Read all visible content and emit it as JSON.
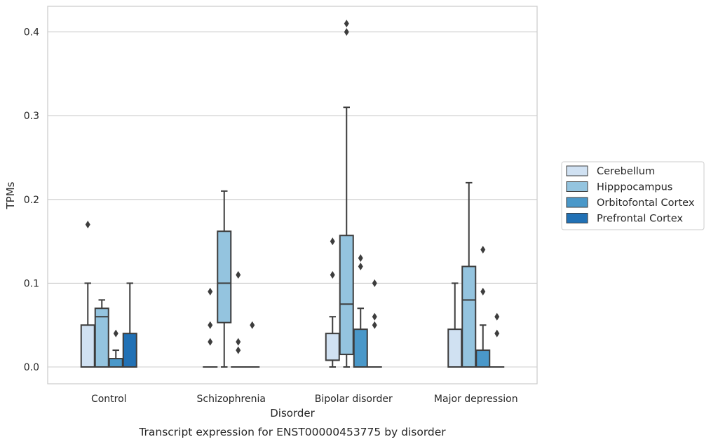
{
  "chart_data": {
    "type": "box",
    "caption": "Transcript expression for ENST00000453775 by disorder",
    "xlabel": "Disorder",
    "ylabel": "TPMs",
    "ylim": [
      -0.02,
      0.43
    ],
    "yticks": [
      0.0,
      0.1,
      0.2,
      0.3,
      0.4
    ],
    "ytick_labels": [
      "0.0",
      "0.1",
      "0.2",
      "0.3",
      "0.4"
    ],
    "grid": "horizontal",
    "legend_position": "right",
    "categories": [
      "Control",
      "Schizophrenia",
      "Bipolar disorder",
      "Major depression"
    ],
    "series": [
      {
        "name": "Cerebellum",
        "color": "#d0e1f2",
        "boxes": [
          {
            "q1": 0.0,
            "median": 0.0,
            "q3": 0.05,
            "whisker_low": 0.0,
            "whisker_high": 0.1,
            "outliers": [
              0.17
            ]
          },
          {
            "q1": 0.0,
            "median": 0.0,
            "q3": 0.0,
            "whisker_low": 0.0,
            "whisker_high": 0.0,
            "outliers": [
              0.03,
              0.05,
              0.09
            ]
          },
          {
            "q1": 0.008,
            "median": 0.008,
            "q3": 0.04,
            "whisker_low": 0.0,
            "whisker_high": 0.06,
            "outliers": [
              0.11,
              0.15
            ]
          },
          {
            "q1": 0.0,
            "median": 0.0,
            "q3": 0.045,
            "whisker_low": 0.0,
            "whisker_high": 0.1,
            "outliers": []
          }
        ]
      },
      {
        "name": "Hipppocampus",
        "color": "#94c4df",
        "boxes": [
          {
            "q1": 0.0,
            "median": 0.06,
            "q3": 0.07,
            "whisker_low": 0.0,
            "whisker_high": 0.08,
            "outliers": []
          },
          {
            "q1": 0.053,
            "median": 0.1,
            "q3": 0.162,
            "whisker_low": 0.0,
            "whisker_high": 0.21,
            "outliers": []
          },
          {
            "q1": 0.015,
            "median": 0.075,
            "q3": 0.157,
            "whisker_low": 0.0,
            "whisker_high": 0.31,
            "outliers": [
              0.4,
              0.41
            ]
          },
          {
            "q1": 0.0,
            "median": 0.08,
            "q3": 0.12,
            "whisker_low": 0.0,
            "whisker_high": 0.22,
            "outliers": []
          }
        ]
      },
      {
        "name": "Orbitofontal Cortex",
        "color": "#4a98c9",
        "boxes": [
          {
            "q1": 0.0,
            "median": 0.0,
            "q3": 0.01,
            "whisker_low": 0.0,
            "whisker_high": 0.02,
            "outliers": [
              0.04
            ]
          },
          {
            "q1": 0.0,
            "median": 0.0,
            "q3": 0.0,
            "whisker_low": 0.0,
            "whisker_high": 0.0,
            "outliers": [
              0.02,
              0.03,
              0.11
            ]
          },
          {
            "q1": 0.0,
            "median": 0.0,
            "q3": 0.045,
            "whisker_low": 0.0,
            "whisker_high": 0.07,
            "outliers": [
              0.12,
              0.13
            ]
          },
          {
            "q1": 0.0,
            "median": 0.0,
            "q3": 0.02,
            "whisker_low": 0.0,
            "whisker_high": 0.05,
            "outliers": [
              0.09,
              0.14
            ]
          }
        ]
      },
      {
        "name": "Prefrontal Cortex",
        "color": "#2171b5",
        "boxes": [
          {
            "q1": 0.0,
            "median": 0.0,
            "q3": 0.04,
            "whisker_low": 0.0,
            "whisker_high": 0.1,
            "outliers": []
          },
          {
            "q1": 0.0,
            "median": 0.0,
            "q3": 0.0,
            "whisker_low": 0.0,
            "whisker_high": 0.0,
            "outliers": [
              0.05
            ]
          },
          {
            "q1": 0.0,
            "median": 0.0,
            "q3": 0.0,
            "whisker_low": 0.0,
            "whisker_high": 0.0,
            "outliers": [
              0.05,
              0.06,
              0.1
            ]
          },
          {
            "q1": 0.0,
            "median": 0.0,
            "q3": 0.0,
            "whisker_low": 0.0,
            "whisker_high": 0.0,
            "outliers": [
              0.04,
              0.06
            ]
          }
        ]
      }
    ]
  }
}
